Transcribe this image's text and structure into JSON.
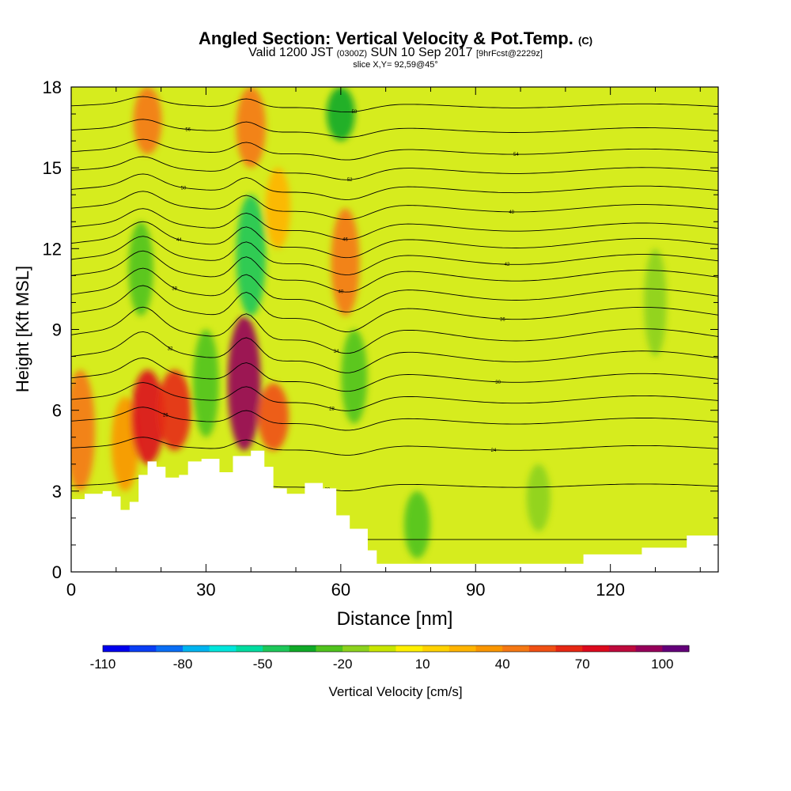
{
  "header": {
    "title": "Angled Section: Vertical Velocity & Pot.Temp.",
    "title_units": "(C)",
    "valid_prefix": "Valid 1200 JST",
    "valid_utc": "(0300Z)",
    "valid_date": "SUN 10 Sep 2017",
    "forecast": "[9hrFcst@2229z]",
    "slice": "slice X,Y= 92,59@45°"
  },
  "chart_data": {
    "type": "heatmap",
    "xlabel": "Distance [nm]",
    "ylabel": "Height [Kft MSL]",
    "xlim": [
      0,
      144
    ],
    "ylim": [
      0,
      18
    ],
    "x_ticks": [
      0,
      30,
      60,
      90,
      120
    ],
    "y_ticks": [
      0,
      3,
      6,
      9,
      12,
      15,
      18
    ],
    "colorbar": {
      "label": "Vertical Velocity [cm/s]",
      "min": -110,
      "max": 110,
      "step": 10,
      "tick_labels": [
        -110,
        -80,
        -50,
        -20,
        10,
        40,
        70,
        100
      ],
      "colors": [
        "#0000ee",
        "#0a3ef5",
        "#0a6ef5",
        "#00b4f0",
        "#00e6dc",
        "#00dca0",
        "#1ec85a",
        "#10aa28",
        "#50c31e",
        "#8cd21e",
        "#c8e600",
        "#fff000",
        "#ffd200",
        "#ffb400",
        "#fa9600",
        "#f57814",
        "#f05014",
        "#e62814",
        "#dc0a1e",
        "#be0a3c",
        "#96005a",
        "#64007a"
      ]
    },
    "terrain_profile": [
      [
        0,
        2.7
      ],
      [
        3,
        2.9
      ],
      [
        7,
        3.0
      ],
      [
        9,
        2.8
      ],
      [
        11,
        2.3
      ],
      [
        13,
        2.6
      ],
      [
        15,
        3.6
      ],
      [
        17,
        4.1
      ],
      [
        19,
        3.9
      ],
      [
        21,
        3.5
      ],
      [
        24,
        3.6
      ],
      [
        26,
        4.1
      ],
      [
        29,
        4.2
      ],
      [
        33,
        3.7
      ],
      [
        36,
        4.3
      ],
      [
        40,
        4.5
      ],
      [
        43,
        3.9
      ],
      [
        45,
        3.1
      ],
      [
        48,
        2.9
      ],
      [
        52,
        3.3
      ],
      [
        56,
        3.1
      ],
      [
        59,
        2.1
      ],
      [
        62,
        1.6
      ],
      [
        66,
        0.8
      ],
      [
        68,
        0.3
      ],
      [
        90,
        0.3
      ],
      [
        113,
        0.3
      ],
      [
        114,
        0.65
      ],
      [
        127,
        0.9
      ],
      [
        137,
        1.35
      ],
      [
        144,
        1.35
      ]
    ],
    "vertical_velocity_cells": [
      {
        "x": 2,
        "z0": 3.0,
        "z1": 7.5,
        "w": 45
      },
      {
        "x": 12,
        "z0": 3.0,
        "z1": 6.5,
        "w": 35
      },
      {
        "x": 17,
        "z0": 4.0,
        "z1": 7.5,
        "w": 70
      },
      {
        "x": 17,
        "z0": 15.5,
        "z1": 18.0,
        "w": 40
      },
      {
        "x": 23,
        "z0": 4.5,
        "z1": 7.5,
        "w": 60
      },
      {
        "x": 38.5,
        "z0": 4.5,
        "z1": 9.5,
        "w": 95
      },
      {
        "x": 40,
        "z0": 15.0,
        "z1": 18.0,
        "w": 45
      },
      {
        "x": 45,
        "z0": 4.5,
        "z1": 7.0,
        "w": 50
      },
      {
        "x": 61,
        "z0": 9.5,
        "z1": 13.5,
        "w": 40
      },
      {
        "x": 46,
        "z0": 12.0,
        "z1": 15.0,
        "w": 25
      },
      {
        "x": 15.5,
        "z0": 9.5,
        "z1": 13.0,
        "w": -25
      },
      {
        "x": 30,
        "z0": 5.0,
        "z1": 9.0,
        "w": -30
      },
      {
        "x": 40,
        "z0": 9.5,
        "z1": 14.0,
        "w": -45
      },
      {
        "x": 60,
        "z0": 16.0,
        "z1": 18.0,
        "w": -40
      },
      {
        "x": 63,
        "z0": 5.5,
        "z1": 9.0,
        "w": -30
      },
      {
        "x": 77,
        "z0": 0.5,
        "z1": 3.0,
        "w": -30
      },
      {
        "x": 104,
        "z0": 1.5,
        "z1": 4.0,
        "w": -20
      },
      {
        "x": 130,
        "z0": 8.0,
        "z1": 12.0,
        "w": -15
      }
    ],
    "potential_temperature_isentropes": [
      {
        "base": 1.2,
        "amp": 0.0,
        "label": ""
      },
      {
        "base": 3.2,
        "amp": 0.25,
        "label": "22"
      },
      {
        "base": 4.6,
        "amp": 0.35,
        "label": "24"
      },
      {
        "base": 5.6,
        "amp": 0.45,
        "label": "26"
      },
      {
        "base": 6.4,
        "amp": 0.55,
        "label": "28"
      },
      {
        "base": 7.2,
        "amp": 0.65,
        "label": "30"
      },
      {
        "base": 8.0,
        "amp": 0.8,
        "label": "32"
      },
      {
        "base": 8.8,
        "amp": 0.9,
        "label": "34"
      },
      {
        "base": 9.6,
        "amp": 0.9,
        "label": "36"
      },
      {
        "base": 10.3,
        "amp": 0.85,
        "label": "38"
      },
      {
        "base": 11.0,
        "amp": 0.8,
        "label": "40"
      },
      {
        "base": 11.6,
        "amp": 0.75,
        "label": "42"
      },
      {
        "base": 12.2,
        "amp": 0.7,
        "label": "44"
      },
      {
        "base": 12.8,
        "amp": 0.6,
        "label": "46"
      },
      {
        "base": 13.5,
        "amp": 0.55,
        "label": "48"
      },
      {
        "base": 14.2,
        "amp": 0.5,
        "label": "50"
      },
      {
        "base": 14.9,
        "amp": 0.45,
        "label": "52"
      },
      {
        "base": 15.6,
        "amp": 0.4,
        "label": "54"
      },
      {
        "base": 16.4,
        "amp": 0.35,
        "label": "56"
      },
      {
        "base": 17.3,
        "amp": 0.3,
        "label": "58"
      }
    ]
  }
}
